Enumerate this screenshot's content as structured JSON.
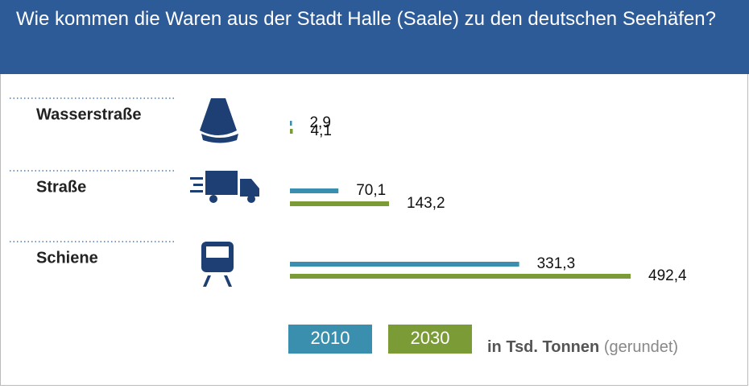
{
  "chart_data": {
    "type": "bar",
    "orientation": "horizontal",
    "title": "Wie kommen die Waren aus der Stadt Halle (Saale) zu den deutschen Seehäfen?",
    "categories": [
      "Wasserstraße",
      "Straße",
      "Schiene"
    ],
    "series": [
      {
        "name": "2010",
        "color": "#3a8fae",
        "values": [
          2.9,
          70.1,
          331.3
        ],
        "value_labels": [
          "2,9",
          "70,1",
          "331,3"
        ]
      },
      {
        "name": "2030",
        "color": "#7a9b35",
        "values": [
          4.1,
          143.2,
          492.4
        ],
        "value_labels": [
          "4,1",
          "143,2",
          "492,4"
        ]
      }
    ],
    "unit": "in Tsd. Tonnen",
    "unit_note": "(gerundet)"
  }
}
